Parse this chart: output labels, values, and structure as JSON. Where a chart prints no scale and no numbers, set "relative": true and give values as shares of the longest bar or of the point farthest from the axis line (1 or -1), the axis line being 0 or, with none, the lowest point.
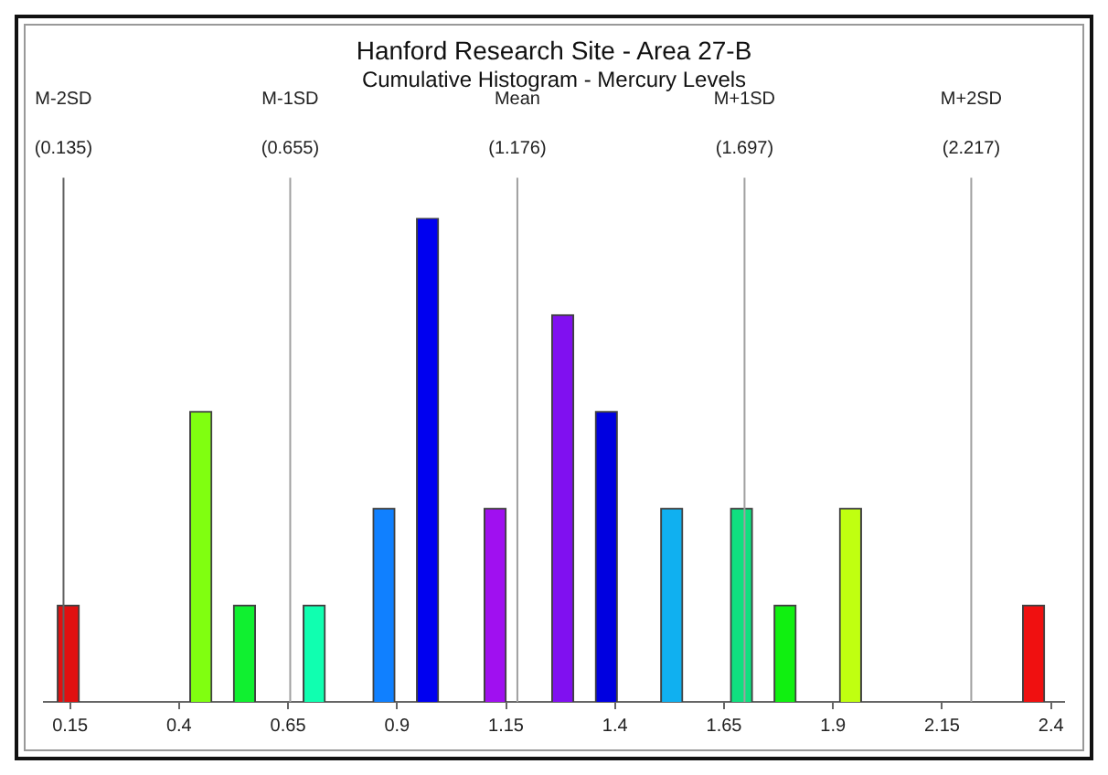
{
  "chart_data": {
    "type": "bar",
    "title": "Hanford Research Site - Area 27-B",
    "subtitle": "Cumulative Histogram - Mercury Levels",
    "relative": true,
    "x": [
      0.146,
      0.45,
      0.55,
      0.71,
      0.87,
      0.97,
      1.125,
      1.28,
      1.38,
      1.53,
      1.69,
      1.79,
      1.94,
      2.36
    ],
    "values": [
      0.2,
      0.6,
      0.2,
      0.2,
      0.4,
      1,
      0.4,
      0.8,
      0.6,
      0.4,
      0.4,
      0.2,
      0.4,
      0.2
    ],
    "colors": [
      "#e01010",
      "#80ff10",
      "#10f030",
      "#10ffb0",
      "#1080ff",
      "#0000f0",
      "#a010f0",
      "#8010f0",
      "#0000e0",
      "#10b0f0",
      "#10e080",
      "#10f010",
      "#c0ff10",
      "#f01010"
    ],
    "xlim": [
      0.09,
      2.43
    ],
    "xticks": [
      0.15,
      0.4,
      0.65,
      0.9,
      1.15,
      1.4,
      1.65,
      1.9,
      2.15,
      2.4
    ],
    "ref_lines": [
      {
        "axis": "x",
        "value": 0.135,
        "label": "M-2SD (0.135)",
        "color": "#606060"
      },
      {
        "axis": "x",
        "value": 0.655,
        "label": "M-1SD (0.655)",
        "color": "#a0a0a0"
      },
      {
        "axis": "x",
        "value": 1.176,
        "label": "Mean (1.176)",
        "color": "#a0a0a0"
      },
      {
        "axis": "x",
        "value": 1.697,
        "label": "M+1SD (1.697)",
        "color": "#a0a0a0"
      },
      {
        "axis": "x",
        "value": 2.217,
        "label": "M+2SD (2.217)",
        "color": "#a0a0a0"
      }
    ]
  }
}
